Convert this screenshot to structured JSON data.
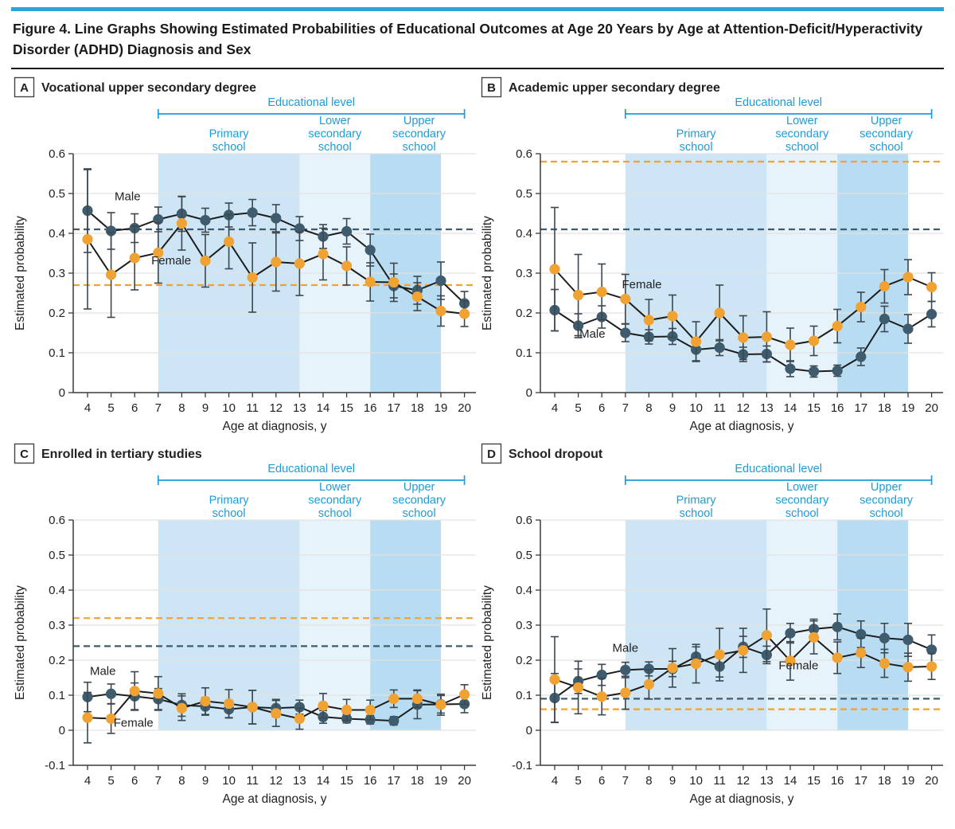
{
  "figure": {
    "title": "Figure 4. Line Graphs Showing Estimated Probabilities of Educational Outcomes at Age 20 Years by Age at Attention-Deficit/Hyperactivity Disorder (ADHD) Diagnosis and Sex"
  },
  "colors": {
    "top_rule": "#2ea3d9",
    "accent_blue": "#1e9cd8",
    "male": "#3e5c6d",
    "female": "#f0a232",
    "series_line": "#1d1d1d",
    "error_bar": "#3c474f",
    "grid": "#e2e2df",
    "axis": "#3a3a3a",
    "text": "#222222",
    "band_primary": "#cde5f4",
    "band_lower": "#e7f3fb",
    "band_upper": "#b8dcf2"
  },
  "shared": {
    "xlabel": "Age at diagnosis, y",
    "ylabel": "Estimated probability",
    "bracket_label": "Educational level",
    "x": [
      4,
      5,
      6,
      7,
      8,
      9,
      10,
      11,
      12,
      13,
      14,
      15,
      16,
      17,
      18,
      19,
      20
    ],
    "bands": [
      {
        "label_lines": [
          "Primary",
          "school"
        ],
        "from": 7,
        "to": 13,
        "color_key": "band_primary",
        "label_dx": 0
      },
      {
        "label_lines": [
          "Lower",
          "secondary",
          "school"
        ],
        "from": 13,
        "to": 16,
        "color_key": "band_lower",
        "label_dx": 0
      },
      {
        "label_lines": [
          "Upper",
          "secondary",
          "school"
        ],
        "from": 16,
        "to": 19,
        "color_key": "band_upper",
        "label_dx": 17
      }
    ]
  },
  "chart_data": [
    {
      "type": "line",
      "letter": "A",
      "title": "Vocational upper secondary degree",
      "ylim": [
        0,
        0.6
      ],
      "yticks": [
        0,
        0.1,
        0.2,
        0.3,
        0.4,
        0.5,
        0.6
      ],
      "series": [
        {
          "name": "Male",
          "color_key": "male",
          "ref_line": 0.41,
          "label_at": [
            5.7,
            0.483
          ],
          "values": [
            0.457,
            0.406,
            0.413,
            0.435,
            0.449,
            0.433,
            0.446,
            0.452,
            0.438,
            0.412,
            0.392,
            0.405,
            0.358,
            0.268,
            0.257,
            0.281,
            0.224
          ],
          "err": [
            0.105,
            0.046,
            0.036,
            0.031,
            0.044,
            0.03,
            0.03,
            0.033,
            0.034,
            0.03,
            0.03,
            0.032,
            0.04,
            0.03,
            0.035,
            0.047,
            0.03
          ]
        },
        {
          "name": "Female",
          "color_key": "female",
          "ref_line": 0.27,
          "label_at": [
            7.55,
            0.322
          ],
          "values": [
            0.385,
            0.296,
            0.338,
            0.351,
            0.425,
            0.331,
            0.379,
            0.289,
            0.328,
            0.324,
            0.348,
            0.318,
            0.278,
            0.277,
            0.241,
            0.205,
            0.198
          ],
          "err": [
            0.175,
            0.107,
            0.08,
            0.076,
            0.067,
            0.066,
            0.068,
            0.087,
            0.073,
            0.08,
            0.065,
            0.048,
            0.048,
            0.048,
            0.035,
            0.038,
            0.032
          ]
        }
      ]
    },
    {
      "type": "line",
      "letter": "B",
      "title": "Academic upper secondary degree",
      "ylim": [
        0,
        0.6
      ],
      "yticks": [
        0,
        0.1,
        0.2,
        0.3,
        0.4,
        0.5,
        0.6
      ],
      "series": [
        {
          "name": "Male",
          "color_key": "male",
          "ref_line": 0.41,
          "label_at": [
            5.6,
            0.138
          ],
          "values": [
            0.207,
            0.168,
            0.19,
            0.15,
            0.14,
            0.141,
            0.108,
            0.113,
            0.096,
            0.097,
            0.06,
            0.053,
            0.055,
            0.09,
            0.185,
            0.16,
            0.197
          ],
          "err": [
            0.052,
            0.03,
            0.028,
            0.022,
            0.018,
            0.02,
            0.028,
            0.02,
            0.018,
            0.02,
            0.02,
            0.014,
            0.014,
            0.022,
            0.032,
            0.036,
            0.032
          ]
        },
        {
          "name": "Female",
          "color_key": "female",
          "ref_line": 0.58,
          "label_at": [
            7.7,
            0.262
          ],
          "values": [
            0.31,
            0.245,
            0.253,
            0.235,
            0.182,
            0.192,
            0.128,
            0.2,
            0.138,
            0.14,
            0.12,
            0.13,
            0.167,
            0.215,
            0.267,
            0.29,
            0.265
          ],
          "err": [
            0.155,
            0.102,
            0.07,
            0.062,
            0.052,
            0.053,
            0.05,
            0.07,
            0.055,
            0.063,
            0.042,
            0.037,
            0.042,
            0.037,
            0.042,
            0.044,
            0.036
          ]
        }
      ]
    },
    {
      "type": "line",
      "letter": "C",
      "title": "Enrolled in tertiary studies",
      "ylim": [
        -0.1,
        0.6
      ],
      "yticks": [
        -0.1,
        0,
        0.1,
        0.2,
        0.3,
        0.4,
        0.5,
        0.6
      ],
      "series": [
        {
          "name": "Male",
          "color_key": "male",
          "ref_line": 0.24,
          "label_at": [
            4.65,
            0.158
          ],
          "values": [
            0.095,
            0.104,
            0.097,
            0.089,
            0.072,
            0.068,
            0.06,
            0.066,
            0.063,
            0.066,
            0.038,
            0.033,
            0.03,
            0.027,
            0.073,
            0.074,
            0.075
          ],
          "err": [
            0.042,
            0.028,
            0.038,
            0.03,
            0.032,
            0.025,
            0.025,
            0.048,
            0.025,
            0.02,
            0.018,
            0.012,
            0.012,
            0.012,
            0.04,
            0.025,
            0.025
          ]
        },
        {
          "name": "Female",
          "color_key": "female",
          "ref_line": 0.32,
          "label_at": [
            5.95,
            0.01
          ],
          "values": [
            0.036,
            0.033,
            0.112,
            0.105,
            0.063,
            0.083,
            0.076,
            0.066,
            0.048,
            0.033,
            0.07,
            0.058,
            0.058,
            0.09,
            0.09,
            0.073,
            0.102
          ],
          "err": [
            0.072,
            0.042,
            0.055,
            0.048,
            0.035,
            0.038,
            0.04,
            0.048,
            0.037,
            0.03,
            0.035,
            0.03,
            0.028,
            0.025,
            0.025,
            0.03,
            0.028
          ]
        }
      ]
    },
    {
      "type": "line",
      "letter": "D",
      "title": "School dropout",
      "ylim": [
        -0.1,
        0.6
      ],
      "yticks": [
        -0.1,
        0,
        0.1,
        0.2,
        0.3,
        0.4,
        0.5,
        0.6
      ],
      "series": [
        {
          "name": "Male",
          "color_key": "male",
          "ref_line": 0.09,
          "label_at": [
            7.0,
            0.224
          ],
          "values": [
            0.092,
            0.14,
            0.158,
            0.172,
            0.175,
            0.175,
            0.21,
            0.182,
            0.238,
            0.215,
            0.277,
            0.289,
            0.295,
            0.274,
            0.263,
            0.258,
            0.23
          ],
          "err": [
            0.07,
            0.035,
            0.03,
            0.022,
            0.02,
            0.022,
            0.028,
            0.03,
            0.03,
            0.025,
            0.028,
            0.028,
            0.037,
            0.038,
            0.042,
            0.047,
            0.042
          ]
        },
        {
          "name": "Female",
          "color_key": "female",
          "ref_line": 0.06,
          "label_at": [
            14.35,
            0.174
          ],
          "values": [
            0.145,
            0.122,
            0.096,
            0.107,
            0.131,
            0.178,
            0.19,
            0.216,
            0.228,
            0.271,
            0.198,
            0.265,
            0.207,
            0.221,
            0.191,
            0.18,
            0.182
          ],
          "err": [
            0.122,
            0.075,
            0.052,
            0.047,
            0.042,
            0.055,
            0.055,
            0.075,
            0.063,
            0.075,
            0.055,
            0.047,
            0.045,
            0.042,
            0.04,
            0.04,
            0.037
          ]
        }
      ]
    }
  ]
}
